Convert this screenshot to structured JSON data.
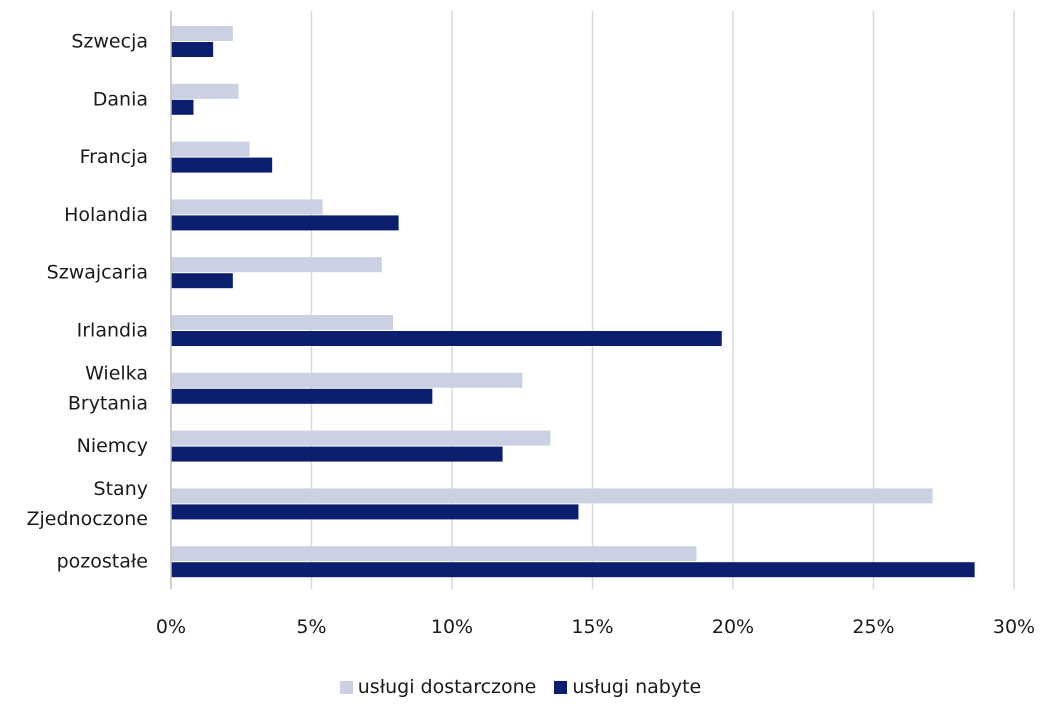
{
  "chart_data": {
    "type": "bar",
    "orientation": "horizontal",
    "categories": [
      [
        "Szwecja"
      ],
      [
        "Dania"
      ],
      [
        "Francja"
      ],
      [
        "Holandia"
      ],
      [
        "Szwajcaria"
      ],
      [
        "Irlandia"
      ],
      [
        "Wielka",
        "Brytania"
      ],
      [
        "Niemcy"
      ],
      [
        "Stany",
        "Zjednoczone"
      ],
      [
        "pozostałe"
      ]
    ],
    "series": [
      {
        "name": "usługi dostarczone",
        "color": "#cbd0e3",
        "values": [
          2.2,
          2.4,
          2.8,
          5.4,
          7.5,
          7.9,
          12.5,
          13.5,
          27.1,
          18.7
        ]
      },
      {
        "name": "usługi nabyte",
        "color": "#0c1f6e",
        "values": [
          1.5,
          0.8,
          3.6,
          8.1,
          2.2,
          19.6,
          9.3,
          11.8,
          14.5,
          28.6
        ]
      }
    ],
    "xlim": [
      0,
      30
    ],
    "xticks": [
      0,
      5,
      10,
      15,
      20,
      25,
      30
    ],
    "xtick_labels": [
      "0%",
      "5%",
      "10%",
      "15%",
      "20%",
      "25%",
      "30%"
    ],
    "grid": "vertical",
    "grid_color": "#d9d9d9",
    "legend_position": "bottom"
  }
}
